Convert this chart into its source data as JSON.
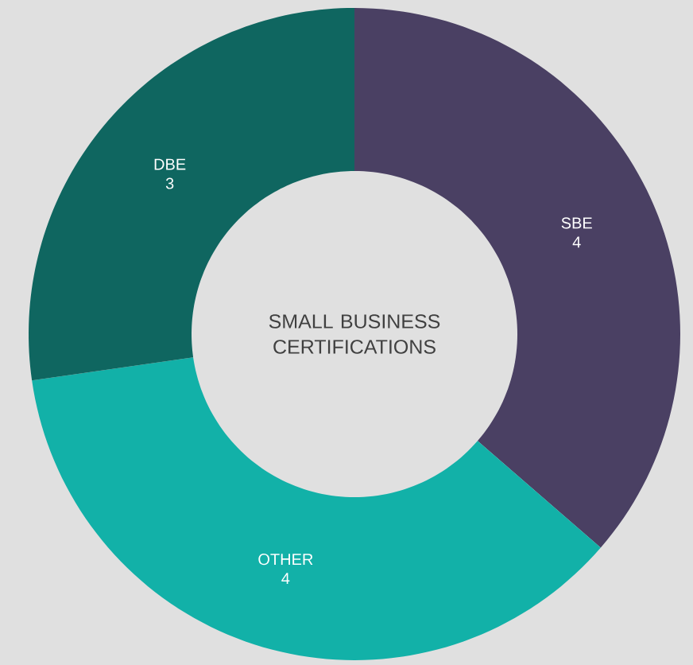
{
  "chart_data": {
    "type": "donut",
    "title": "SMALL BUSINESS CERTIFICATIONS",
    "categories": [
      "SBE",
      "OTHER",
      "DBE"
    ],
    "values": [
      4,
      4,
      3
    ],
    "colors": [
      "#4a4063",
      "#12b1a8",
      "#0f6660"
    ],
    "data_labels": true
  }
}
